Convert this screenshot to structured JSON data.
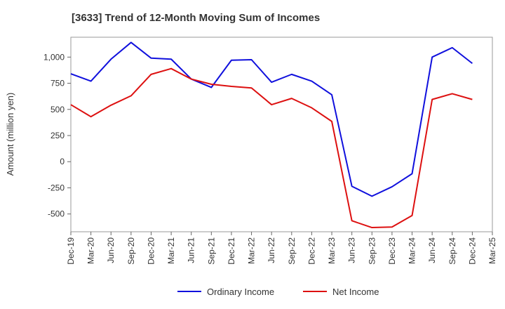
{
  "chart_data": {
    "type": "line",
    "title": "[3633]  Trend of 12-Month Moving Sum of Incomes",
    "xlabel": "",
    "ylabel": "Amount (million yen)",
    "ylim": [
      -670,
      1190
    ],
    "yticks": [
      -500,
      -250,
      0,
      250,
      500,
      750,
      1000
    ],
    "ytick_labels": [
      "-500",
      "-250",
      "0",
      "250",
      "500",
      "750",
      "1,000"
    ],
    "grid": true,
    "legend_position": "bottom-center",
    "categories": [
      "Dec-19",
      "Mar-20",
      "Jun-20",
      "Sep-20",
      "Dec-20",
      "Mar-21",
      "Jun-21",
      "Sep-21",
      "Dec-21",
      "Mar-22",
      "Jun-22",
      "Sep-22",
      "Dec-22",
      "Mar-23",
      "Jun-23",
      "Sep-23",
      "Dec-23",
      "Mar-24",
      "Jun-24",
      "Sep-24",
      "Dec-24",
      "Mar-25"
    ],
    "series": [
      {
        "name": "Ordinary Income",
        "color": "#1010dd",
        "values": [
          840,
          770,
          980,
          1140,
          990,
          980,
          790,
          710,
          970,
          975,
          760,
          835,
          770,
          640,
          -235,
          -330,
          -240,
          -115,
          1000,
          1090,
          940,
          null
        ]
      },
      {
        "name": "Net Income",
        "color": "#dd1010",
        "values": [
          545,
          430,
          540,
          630,
          835,
          890,
          790,
          740,
          720,
          705,
          545,
          605,
          515,
          385,
          -565,
          -630,
          -625,
          -515,
          595,
          650,
          595,
          null
        ]
      }
    ]
  }
}
